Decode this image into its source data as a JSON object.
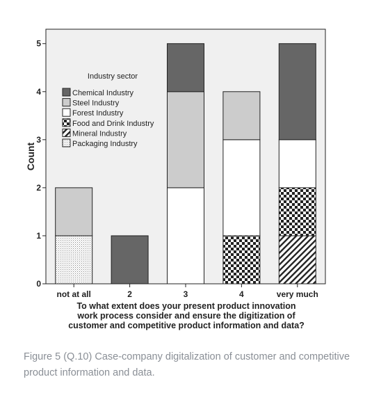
{
  "chart_data": {
    "type": "bar",
    "stacked": true,
    "categories": [
      "not at all",
      "2",
      "3",
      "4",
      "very much"
    ],
    "series": [
      {
        "name": "Chemical Industry",
        "values": [
          0,
          1,
          1,
          0,
          2
        ],
        "fill": "chemical"
      },
      {
        "name": "Steel Industry",
        "values": [
          1,
          0,
          2,
          1,
          0
        ],
        "fill": "steel"
      },
      {
        "name": "Forest Industry",
        "values": [
          0,
          0,
          2,
          2,
          1
        ],
        "fill": "forest"
      },
      {
        "name": "Food and Drink Industry",
        "values": [
          0,
          0,
          0,
          1,
          1
        ],
        "fill": "food"
      },
      {
        "name": "Mineral Industry",
        "values": [
          0,
          0,
          0,
          0,
          1
        ],
        "fill": "mineral"
      },
      {
        "name": "Packaging Industry",
        "values": [
          1,
          0,
          0,
          0,
          0
        ],
        "fill": "packaging"
      }
    ],
    "ylabel": "Count",
    "xlabel": "To what extent does your present product innovation\nwork process consider and ensure the digitization of\ncustomer and competitive product information and data?",
    "legend_title": "Industry sector",
    "legend_position": "top-left",
    "ylim": [
      0,
      5.3
    ],
    "yticks": [
      0,
      1,
      2,
      3,
      4,
      5
    ],
    "grid": false,
    "colors": {
      "plot_background": "#f0f0f0",
      "chemical": "#666666",
      "steel": "#cccccc",
      "forest": "#ffffff",
      "outline": "#222222"
    }
  },
  "caption": "Figure 5 (Q.10) Case-company digitalization of customer and competitive product information and data."
}
